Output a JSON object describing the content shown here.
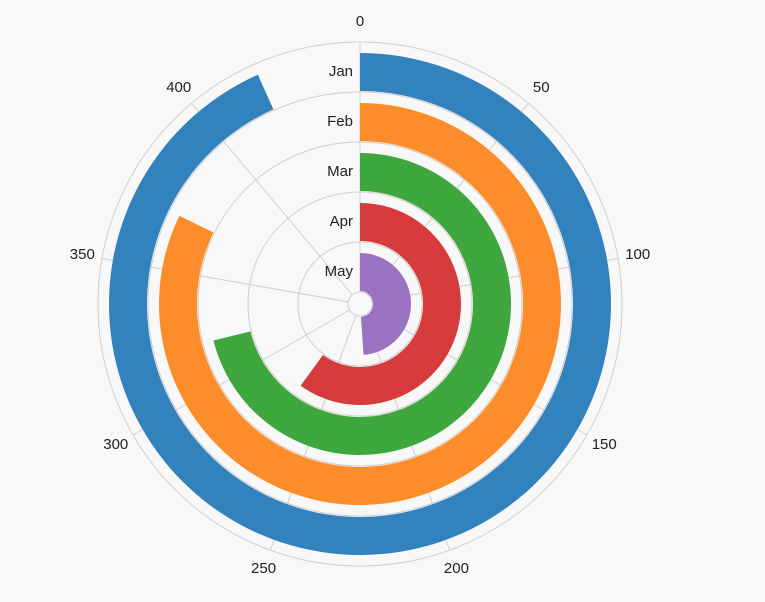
{
  "chart_data": {
    "type": "bar",
    "subtype": "radial-bar",
    "categories": [
      "Jan",
      "Feb",
      "Mar",
      "Apr",
      "May"
    ],
    "values": [
      420,
      370,
      320,
      270,
      220
    ],
    "angular_axis": {
      "min": 0,
      "max": 450,
      "ticks": [
        0,
        50,
        100,
        150,
        200,
        250,
        300,
        350,
        400
      ]
    },
    "colors": [
      "#3182bd",
      "#fd8d2a",
      "#3ea83e",
      "#d63c3c",
      "#9a72c2"
    ],
    "grid": true,
    "legend": "none"
  }
}
